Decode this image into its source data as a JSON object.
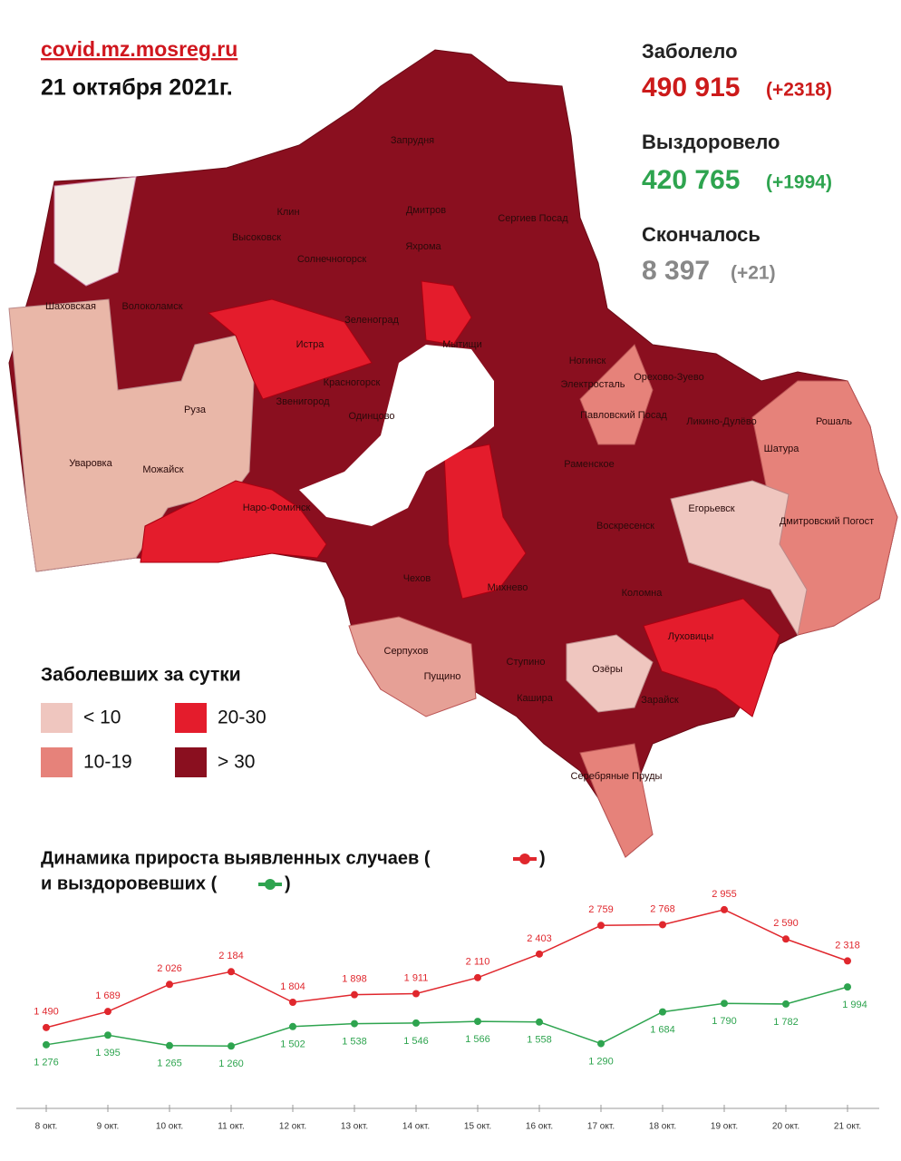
{
  "header": {
    "site": "covid.mz.mosreg.ru",
    "date": "21 октября 2021г."
  },
  "stats": [
    {
      "label": "Заболело",
      "value": "490 915",
      "delta": "(+2318)"
    },
    {
      "label": "Выздоровело",
      "value": "420 765",
      "delta": "(+1994)"
    },
    {
      "label": "Скончалось",
      "value": "8 397",
      "delta": "(+21)"
    }
  ],
  "legend": {
    "title": "Заболевших за сутки",
    "items": [
      {
        "label": "< 10",
        "color": "#efc6bf"
      },
      {
        "label": "10-19",
        "color": "#e6827a"
      },
      {
        "label": "20-30",
        "color": "#e41c2c"
      },
      {
        "label": "> 30",
        "color": "#8a0f1f"
      }
    ]
  },
  "map": {
    "labels": [
      "Дмитров",
      "Запрудня",
      "Клин",
      "Высоковск",
      "Солнечногорск",
      "Сергиев Посад",
      "Яхрома",
      "Волоколамск",
      "Шаховская",
      "Истра",
      "Зеленоград",
      "Мытищи",
      "Красногорск",
      "Ногинск",
      "Электросталь",
      "Орехово-Зуево",
      "Павловский Посад",
      "Ликино-Дулёво",
      "Рошаль",
      "Шатура",
      "Руза",
      "Звенигород",
      "Одинцово",
      "Уваровка",
      "Можайск",
      "Раменское",
      "Наро-Фоминск",
      "Егорьевск",
      "Дмитровский Погост",
      "Воскресенск",
      "Чехов",
      "Михнево",
      "Коломна",
      "Серпухов",
      "Пущино",
      "Ступино",
      "Озёры",
      "Луховицы",
      "Кашира",
      "Зарайск",
      "Серебряные Пруды"
    ]
  },
  "chart_data": {
    "type": "line",
    "title": [
      "Динамика прироста выявленных случаев (",
      ")"
    ],
    "subtitle": [
      "и выздоровевших (",
      ")"
    ],
    "categories": [
      "8 окт.",
      "9 окт.",
      "10 окт.",
      "11 окт.",
      "12 окт.",
      "13 окт.",
      "14 окт.",
      "15 окт.",
      "16 окт.",
      "17 окт.",
      "18 окт.",
      "19 окт.",
      "20 окт.",
      "21 окт."
    ],
    "series": [
      {
        "color": "#e0272d",
        "values": [
          1490,
          1689,
          2026,
          2184,
          1804,
          1898,
          1911,
          2110,
          2403,
          2759,
          2768,
          2955,
          2590,
          2318
        ],
        "value_labels": [
          "1 490",
          "1 689",
          "2 026",
          "2 184",
          "1 804",
          "1 898",
          "1 911",
          "2 110",
          "2 403",
          "2 759",
          "2 768",
          "2 955",
          "2 590",
          "2 318"
        ]
      },
      {
        "color": "#2ea44f",
        "values": [
          1276,
          1395,
          1265,
          1260,
          1502,
          1538,
          1546,
          1566,
          1558,
          1290,
          1684,
          1790,
          1782,
          1994
        ],
        "value_labels": [
          "1 276",
          "1 395",
          "1 265",
          "1 260",
          "1 502",
          "1 538",
          "1 546",
          "1 566",
          "1 558",
          "1 290",
          "1 684",
          "1 790",
          "1 782",
          "1 994"
        ]
      }
    ]
  }
}
